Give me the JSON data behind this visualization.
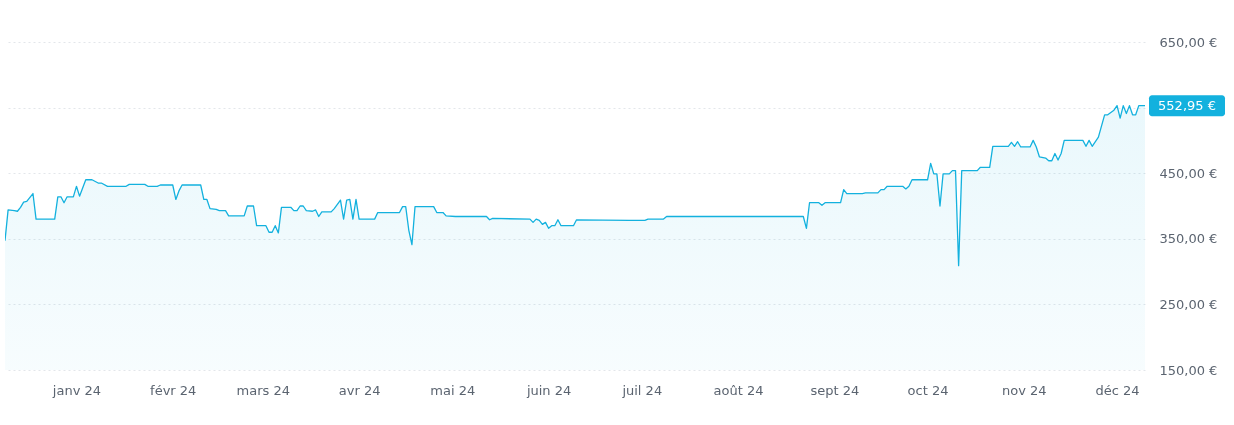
{
  "chart_data": {
    "type": "area",
    "x": [
      "2023-12-09",
      "2023-12-10",
      "2023-12-12",
      "2023-12-13",
      "2023-12-14",
      "2023-12-15",
      "2023-12-16",
      "2023-12-18",
      "2023-12-19",
      "2023-12-25",
      "2023-12-26",
      "2023-12-27",
      "2023-12-28",
      "2023-12-29",
      "2023-12-31",
      "2024-01-01",
      "2024-01-02",
      "2024-01-04",
      "2024-01-06",
      "2024-01-08",
      "2024-01-09",
      "2024-01-11",
      "2024-01-17",
      "2024-01-18",
      "2024-01-23",
      "2024-01-24",
      "2024-01-27",
      "2024-01-28",
      "2024-02-01",
      "2024-02-02",
      "2024-02-03",
      "2024-02-04",
      "2024-02-10",
      "2024-02-11",
      "2024-02-12",
      "2024-02-13",
      "2024-02-15",
      "2024-02-16",
      "2024-02-18",
      "2024-02-19",
      "2024-02-24",
      "2024-02-25",
      "2024-02-27",
      "2024-02-28",
      "2024-03-02",
      "2024-03-03",
      "2024-03-04",
      "2024-03-05",
      "2024-03-06",
      "2024-03-07",
      "2024-03-10",
      "2024-03-11",
      "2024-03-12",
      "2024-03-13",
      "2024-03-14",
      "2024-03-15",
      "2024-03-17",
      "2024-03-18",
      "2024-03-19",
      "2024-03-20",
      "2024-03-23",
      "2024-03-24",
      "2024-03-26",
      "2024-03-27",
      "2024-03-28",
      "2024-03-29",
      "2024-03-30",
      "2024-03-31",
      "2024-04-01",
      "2024-04-06",
      "2024-04-07",
      "2024-04-14",
      "2024-04-15",
      "2024-04-16",
      "2024-04-17",
      "2024-04-18",
      "2024-04-19",
      "2024-04-25",
      "2024-04-26",
      "2024-04-28",
      "2024-04-29",
      "2024-05-02",
      "2024-05-12",
      "2024-05-13",
      "2024-05-14",
      "2024-05-26",
      "2024-05-27",
      "2024-05-28",
      "2024-05-29",
      "2024-05-30",
      "2024-05-31",
      "2024-06-01",
      "2024-06-02",
      "2024-06-03",
      "2024-06-04",
      "2024-06-05",
      "2024-06-09",
      "2024-06-10",
      "2024-06-27",
      "2024-07-02",
      "2024-07-03",
      "2024-07-08",
      "2024-07-09",
      "2024-08-22",
      "2024-08-23",
      "2024-08-24",
      "2024-08-27",
      "2024-08-28",
      "2024-08-29",
      "2024-09-03",
      "2024-09-04",
      "2024-09-05",
      "2024-09-10",
      "2024-09-11",
      "2024-09-15",
      "2024-09-16",
      "2024-09-17",
      "2024-09-18",
      "2024-09-23",
      "2024-09-24",
      "2024-09-25",
      "2024-09-26",
      "2024-10-01",
      "2024-10-02",
      "2024-10-03",
      "2024-10-04",
      "2024-10-05",
      "2024-10-06",
      "2024-10-08",
      "2024-10-09",
      "2024-10-10",
      "2024-10-11",
      "2024-10-12",
      "2024-10-17",
      "2024-10-18",
      "2024-10-21",
      "2024-10-22",
      "2024-10-27",
      "2024-10-28",
      "2024-10-29",
      "2024-10-30",
      "2024-10-31",
      "2024-11-03",
      "2024-11-04",
      "2024-11-05",
      "2024-11-06",
      "2024-11-08",
      "2024-11-09",
      "2024-11-10",
      "2024-11-11",
      "2024-11-12",
      "2024-11-13",
      "2024-11-14",
      "2024-11-20",
      "2024-11-21",
      "2024-11-22",
      "2024-11-23",
      "2024-11-25",
      "2024-11-27",
      "2024-11-28",
      "2024-11-30",
      "2024-12-01",
      "2024-12-02",
      "2024-12-03",
      "2024-12-04",
      "2024-12-05",
      "2024-12-06",
      "2024-12-07",
      "2024-12-08",
      "2024-12-10"
    ],
    "series": [
      {
        "color": "#13b1de",
        "values": [
          347,
          394,
          393,
          392,
          398,
          406,
          407,
          419,
          380,
          380,
          414,
          414,
          405,
          414,
          414,
          430,
          415,
          440,
          440,
          435,
          435,
          430,
          430,
          433,
          433,
          430,
          430,
          432,
          432,
          410,
          423,
          432,
          432,
          410,
          410,
          396,
          395,
          393,
          393,
          385,
          385,
          400,
          400,
          370,
          370,
          360,
          360,
          370,
          359,
          398,
          398,
          393,
          393,
          400,
          400,
          393,
          392,
          394,
          384,
          391,
          391,
          396,
          409,
          380,
          409,
          410,
          380,
          410,
          380,
          380,
          390,
          390,
          399,
          399,
          363,
          341,
          399,
          399,
          390,
          390,
          385,
          384,
          384,
          379,
          381,
          380,
          375,
          380,
          378,
          372,
          375,
          366,
          370,
          370,
          379,
          370,
          370,
          379,
          378,
          378,
          380,
          380,
          384,
          384,
          366,
          405,
          405,
          401,
          405,
          405,
          425,
          419,
          419,
          420,
          420,
          425,
          425,
          430,
          430,
          426,
          430,
          440,
          440,
          465,
          449,
          449,
          400,
          449,
          449,
          454,
          454,
          309,
          454,
          454,
          459,
          459,
          491,
          491,
          497,
          491,
          498,
          490,
          490,
          500,
          490,
          475,
          473,
          469,
          469,
          480,
          470,
          480,
          500,
          500,
          491,
          500,
          491,
          505,
          539,
          539,
          546,
          553,
          534,
          553,
          541,
          553,
          539,
          539,
          553,
          552.95
        ]
      }
    ],
    "xlim": [
      "2023-12-09",
      "2024-12-10"
    ],
    "xticks": [
      {
        "value": "2024-01-01",
        "label": "janv 24"
      },
      {
        "value": "2024-02-01",
        "label": "févr 24"
      },
      {
        "value": "2024-03-01",
        "label": "mars 24"
      },
      {
        "value": "2024-04-01",
        "label": "avr 24"
      },
      {
        "value": "2024-05-01",
        "label": "mai 24"
      },
      {
        "value": "2024-06-01",
        "label": "juin 24"
      },
      {
        "value": "2024-07-01",
        "label": "juil 24"
      },
      {
        "value": "2024-08-01",
        "label": "août 24"
      },
      {
        "value": "2024-09-01",
        "label": "sept 24"
      },
      {
        "value": "2024-10-01",
        "label": "oct 24"
      },
      {
        "value": "2024-11-01",
        "label": "nov 24"
      },
      {
        "value": "2024-12-01",
        "label": "déc 24"
      }
    ],
    "ylim": [
      150,
      650
    ],
    "yticks": [
      {
        "value": 150,
        "label": "150,00 €"
      },
      {
        "value": 250,
        "label": "250,00 €"
      },
      {
        "value": 350,
        "label": "350,00 €"
      },
      {
        "value": 450,
        "label": "450,00 €"
      },
      {
        "value": 550,
        "label": null
      },
      {
        "value": 650,
        "label": "650,00 €"
      }
    ],
    "grid": "y",
    "annotations": [
      {
        "text": "552,95 €",
        "x": "2024-12-10",
        "y": 552.95
      }
    ]
  }
}
